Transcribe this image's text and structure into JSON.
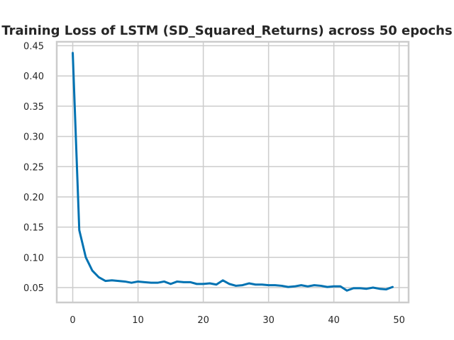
{
  "chart_data": {
    "type": "line",
    "title": "Training Loss of LSTM (SD_Squared_Returns) across 50 epochs",
    "xlabel": "",
    "ylabel": "",
    "xlim": [
      -2.45,
      51.45
    ],
    "ylim": [
      0.0254,
      0.4565
    ],
    "x_ticks": [
      0,
      10,
      20,
      30,
      40,
      50
    ],
    "y_ticks": [
      0.05,
      0.1,
      0.15,
      0.2,
      0.25,
      0.3,
      0.35,
      0.4,
      0.45
    ],
    "y_tick_labels": [
      "0.05",
      "0.10",
      "0.15",
      "0.20",
      "0.25",
      "0.30",
      "0.35",
      "0.40",
      "0.45"
    ],
    "grid": true,
    "legend": "none",
    "series": [
      {
        "color": "#0072b2",
        "x": [
          0,
          1,
          2,
          3,
          4,
          5,
          6,
          7,
          8,
          9,
          10,
          11,
          12,
          13,
          14,
          15,
          16,
          17,
          18,
          19,
          20,
          21,
          22,
          23,
          24,
          25,
          26,
          27,
          28,
          29,
          30,
          31,
          32,
          33,
          34,
          35,
          36,
          37,
          38,
          39,
          40,
          41,
          42,
          43,
          44,
          45,
          46,
          47,
          48,
          49
        ],
        "values": [
          0.438,
          0.145,
          0.1,
          0.078,
          0.067,
          0.061,
          0.062,
          0.061,
          0.06,
          0.058,
          0.06,
          0.059,
          0.058,
          0.058,
          0.06,
          0.056,
          0.06,
          0.059,
          0.059,
          0.056,
          0.056,
          0.057,
          0.055,
          0.062,
          0.056,
          0.053,
          0.054,
          0.057,
          0.055,
          0.055,
          0.054,
          0.054,
          0.053,
          0.051,
          0.052,
          0.054,
          0.052,
          0.054,
          0.053,
          0.051,
          0.052,
          0.052,
          0.045,
          0.049,
          0.049,
          0.048,
          0.05,
          0.048,
          0.047,
          0.051
        ]
      }
    ]
  }
}
